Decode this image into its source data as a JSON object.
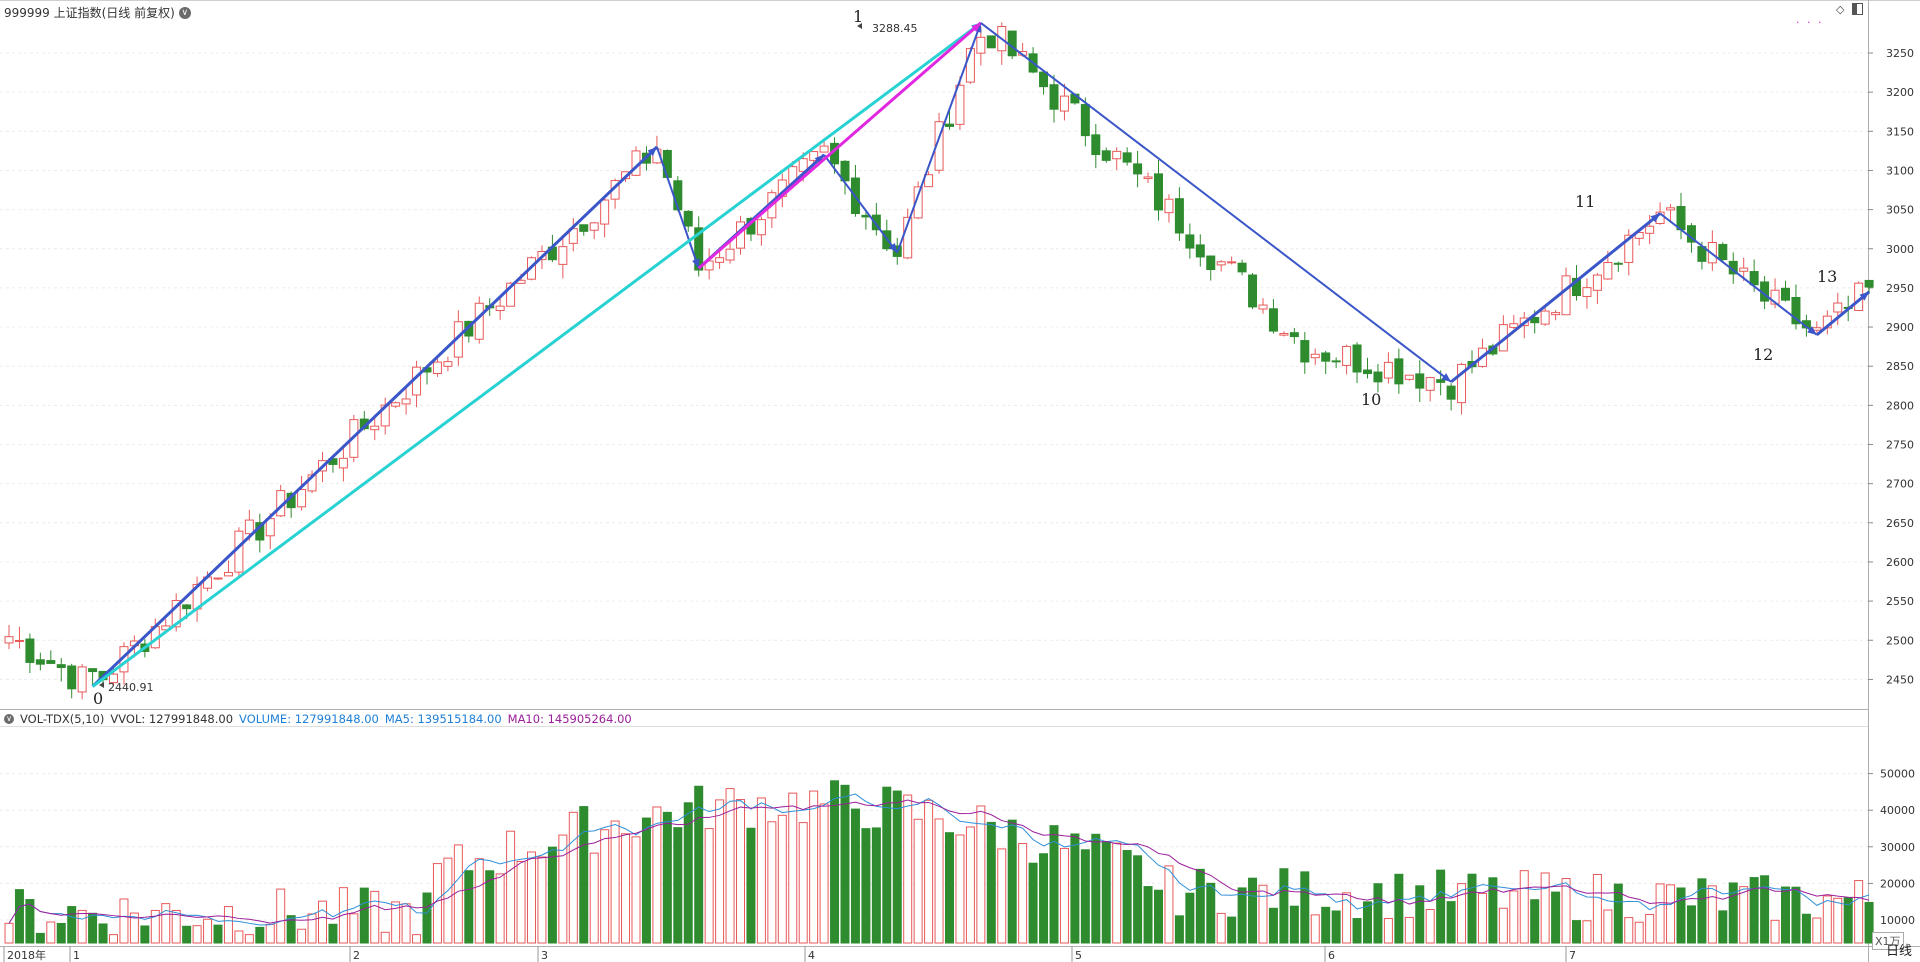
{
  "header": {
    "title": "999999 上证指数(日线 前复权)",
    "dropdown_icon": "chevron-down-icon",
    "top_right_icons": [
      "diamond-icon",
      "split-panel-icon"
    ],
    "dots": "· · ·"
  },
  "colors": {
    "up": "#e8595a",
    "down": "#2e8b2e",
    "trend_blue": "#3a56c8",
    "trend_cyan": "#28d2d2",
    "trend_magenta": "#e028e0",
    "ma5": "#2f8fd8",
    "ma10": "#9b1f9b",
    "volume_label": "#1d7fd6"
  },
  "price_axis": {
    "ticks": [
      "3250",
      "3200",
      "3150",
      "3100",
      "3050",
      "3000",
      "2950",
      "2900",
      "2850",
      "2800",
      "2750",
      "2700",
      "2650",
      "2600",
      "2550",
      "2500",
      "2450"
    ]
  },
  "annotations": {
    "high_label": "3288.45",
    "low_label": "2440.91",
    "wave_labels": [
      "0",
      "1",
      "10",
      "11",
      "12",
      "13"
    ]
  },
  "volume_panel": {
    "indicator": "VOL-TDX(5,10)",
    "vvol": "VVOL: 127991848.00",
    "volume": "VOLUME: 127991848.00",
    "ma5": "MA5: 139515184.00",
    "ma10": "MA10: 145905264.00",
    "axis_ticks": [
      "50000",
      "40000",
      "30000",
      "20000",
      "10000"
    ],
    "unit_label": "X1万"
  },
  "time_axis": {
    "labels": [
      "2018年",
      "1",
      "2",
      "3",
      "4",
      "5",
      "6",
      "7"
    ]
  },
  "period_label": "日线"
}
